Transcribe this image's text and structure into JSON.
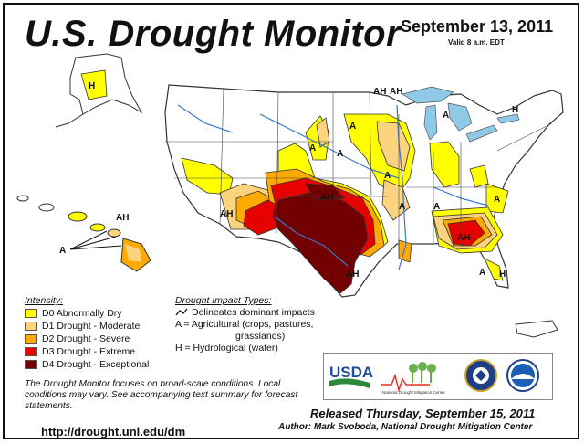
{
  "title": "U.S. Drought Monitor",
  "date": "September 13, 2011",
  "valid_time": "Valid 8 a.m. EDT",
  "intensity": {
    "heading": "Intensity:",
    "items": [
      {
        "label": "D0 Abnormally Dry",
        "color": "#ffff00"
      },
      {
        "label": "D1 Drought - Moderate",
        "color": "#fcd37f"
      },
      {
        "label": "D2 Drought - Severe",
        "color": "#ffaa00"
      },
      {
        "label": "D3 Drought - Extreme",
        "color": "#e60000"
      },
      {
        "label": "D4 Drought - Exceptional",
        "color": "#730000"
      }
    ]
  },
  "impact_types": {
    "heading": "Drought Impact Types:",
    "dominant": "Delineates dominant impacts",
    "agricultural_1": "A = Agricultural (crops, pastures,",
    "agricultural_2": "grasslands)",
    "hydrological": "H = Hydrological (water)"
  },
  "note": "The Drought Monitor focuses on broad-scale conditions. Local conditions may vary. See accompanying text summary for forecast statements.",
  "url": "http://drought.unl.edu/dm",
  "released": "Released Thursday, September 15, 2011",
  "author": "Author: Mark Svoboda, National Drought Mitigation Center",
  "logos": {
    "usda": "USDA",
    "ndmc": "National Drought Mitigation Center"
  },
  "map_labels": {
    "alaska": "H",
    "hawaii_ah": "AH",
    "hawaii_a": "A",
    "nm": "AH",
    "ok": "AH",
    "tx": "AH",
    "ne": "A",
    "dakota": "A",
    "ia": "A",
    "mn": "A",
    "ar": "A",
    "tn": "A",
    "mi_ah": "AH",
    "mi_ah2": "AH",
    "mi_a": "A",
    "ny_h": "H",
    "nc_a": "A",
    "ga": "AH",
    "fl_h": "H",
    "fl_a": "A"
  }
}
